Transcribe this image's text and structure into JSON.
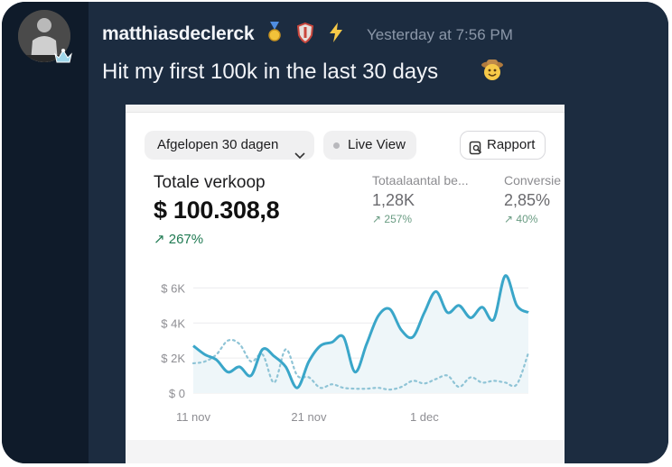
{
  "post": {
    "username": "matthiasdeclerck",
    "timestamp": "Yesterday at 7:56 PM",
    "message": "Hit my first 100k in the last 30 days",
    "badges": [
      "medal-icon",
      "shield-icon",
      "lightning-icon"
    ],
    "avatar": "user-avatar",
    "role_icon": "crown-icon",
    "reaction_emoji": "cowboy-face-emoji"
  },
  "dashboard": {
    "date_filter": "Afgelopen 30 dagen",
    "live_view": "Live View",
    "report": "Rapport",
    "total_sales_label": "Totale verkoop",
    "total_sales_value": "$ 100.308,8",
    "total_sales_change": "267%",
    "kpis": [
      {
        "label": "Totaalaantal be...",
        "value": "1,28K",
        "change": "257%"
      },
      {
        "label": "Conversie",
        "value": "2,85%",
        "change": "40%"
      }
    ]
  },
  "chart_data": {
    "type": "line",
    "x": [
      "11 nov",
      "12 nov",
      "13 nov",
      "14 nov",
      "15 nov",
      "16 nov",
      "17 nov",
      "18 nov",
      "19 nov",
      "20 nov",
      "21 nov",
      "22 nov",
      "23 nov",
      "24 nov",
      "25 nov",
      "26 nov",
      "27 nov",
      "28 nov",
      "29 nov",
      "30 nov",
      "1 dec",
      "2 dec",
      "3 dec",
      "4 dec",
      "5 dec",
      "6 dec",
      "7 dec",
      "8 dec",
      "9 dec",
      "10 dec"
    ],
    "x_ticks": [
      "11 nov",
      "21 nov",
      "1 dec"
    ],
    "y_ticks": [
      "$ 0",
      "$ 2K",
      "$ 4K",
      "$ 6K"
    ],
    "ylim": [
      0,
      7000
    ],
    "series": [
      {
        "color": "#3aa6c9",
        "style": "solid",
        "values": [
          2700,
          2200,
          1900,
          1200,
          1500,
          1000,
          2500,
          2100,
          1500,
          300,
          1800,
          2700,
          2900,
          3200,
          1200,
          2800,
          4400,
          4800,
          3600,
          3200,
          4600,
          5800,
          4600,
          5000,
          4300,
          4900,
          4200,
          6700,
          5000,
          4600
        ]
      },
      {
        "color": "#8fc4d6",
        "style": "dotted",
        "values": [
          1700,
          1800,
          2200,
          3000,
          2800,
          1800,
          2200,
          600,
          2500,
          1000,
          900,
          300,
          500,
          300,
          250,
          250,
          300,
          200,
          350,
          700,
          550,
          800,
          1000,
          350,
          900,
          600,
          700,
          600,
          500,
          2300
        ]
      }
    ]
  }
}
